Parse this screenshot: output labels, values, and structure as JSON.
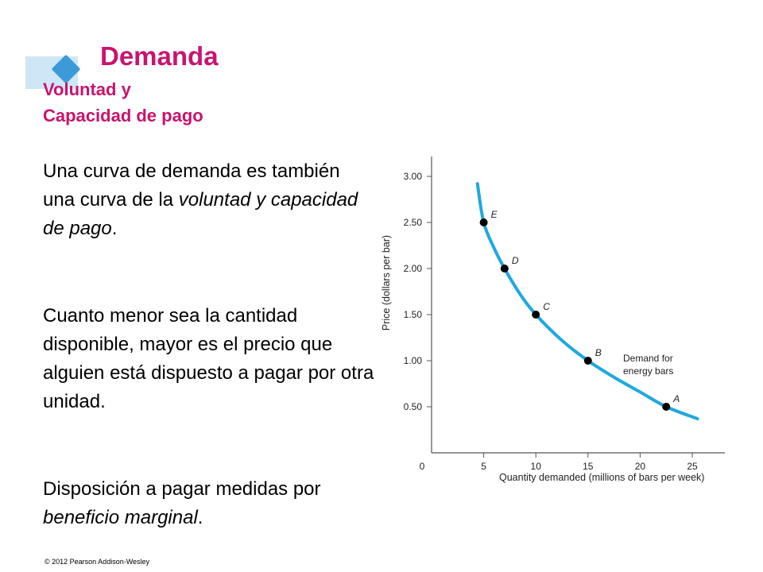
{
  "slide": {
    "title": "Demanda",
    "subtitle_line1": "Voluntad y",
    "subtitle_line2": "Capacidad de pago",
    "p1_text": "Una curva de demanda es también una  curva de la ",
    "p1_italic": "voluntad y capacidad de pago",
    "p1_end": ".",
    "p2_text": "Cuanto menor sea la cantidad disponible, mayor es el precio que alguien está dispuesto a pagar por otra unidad.",
    "p3_text": "Disposición a pagar medidas por ",
    "p3_italic": "beneficio marginal",
    "p3_end": ".",
    "copyright": "© 2012 Pearson Addison-Wesley"
  },
  "colors": {
    "accent": "#c8146e",
    "curve": "#1fa8e0",
    "deco_light": "#cfe6f6",
    "deco_dark": "#3c9ad8"
  },
  "chart_data": {
    "type": "line",
    "xlabel": "Quantity demanded (millions of bars per week)",
    "ylabel": "Price (dollars per bar)",
    "xlim": [
      0,
      25
    ],
    "ylim": [
      0,
      3.0
    ],
    "x_ticks": [
      "0",
      "5",
      "10",
      "15",
      "20",
      "25"
    ],
    "y_ticks": [
      "0.50",
      "1.00",
      "1.50",
      "2.00",
      "2.50",
      "3.00"
    ],
    "series": [
      {
        "name": "Demand for energy bars",
        "curve": [
          {
            "x": 4.4,
            "y": 2.92
          },
          {
            "x": 5,
            "y": 2.5
          },
          {
            "x": 6,
            "y": 2.22
          },
          {
            "x": 7,
            "y": 2.0
          },
          {
            "x": 8.5,
            "y": 1.72
          },
          {
            "x": 10,
            "y": 1.5
          },
          {
            "x": 12.5,
            "y": 1.22
          },
          {
            "x": 15,
            "y": 1.0
          },
          {
            "x": 17.5,
            "y": 0.82
          },
          {
            "x": 20,
            "y": 0.66
          },
          {
            "x": 22.5,
            "y": 0.5
          },
          {
            "x": 25.5,
            "y": 0.37
          }
        ],
        "points": [
          {
            "label": "E",
            "x": 5,
            "y": 2.5
          },
          {
            "label": "D",
            "x": 7,
            "y": 2.0
          },
          {
            "label": "C",
            "x": 10,
            "y": 1.5
          },
          {
            "label": "B",
            "x": 15,
            "y": 1.0
          },
          {
            "label": "A",
            "x": 22.5,
            "y": 0.5
          }
        ]
      }
    ],
    "annotation_line1": "Demand for",
    "annotation_line2": "energy bars",
    "grid": false,
    "legend": "none"
  }
}
